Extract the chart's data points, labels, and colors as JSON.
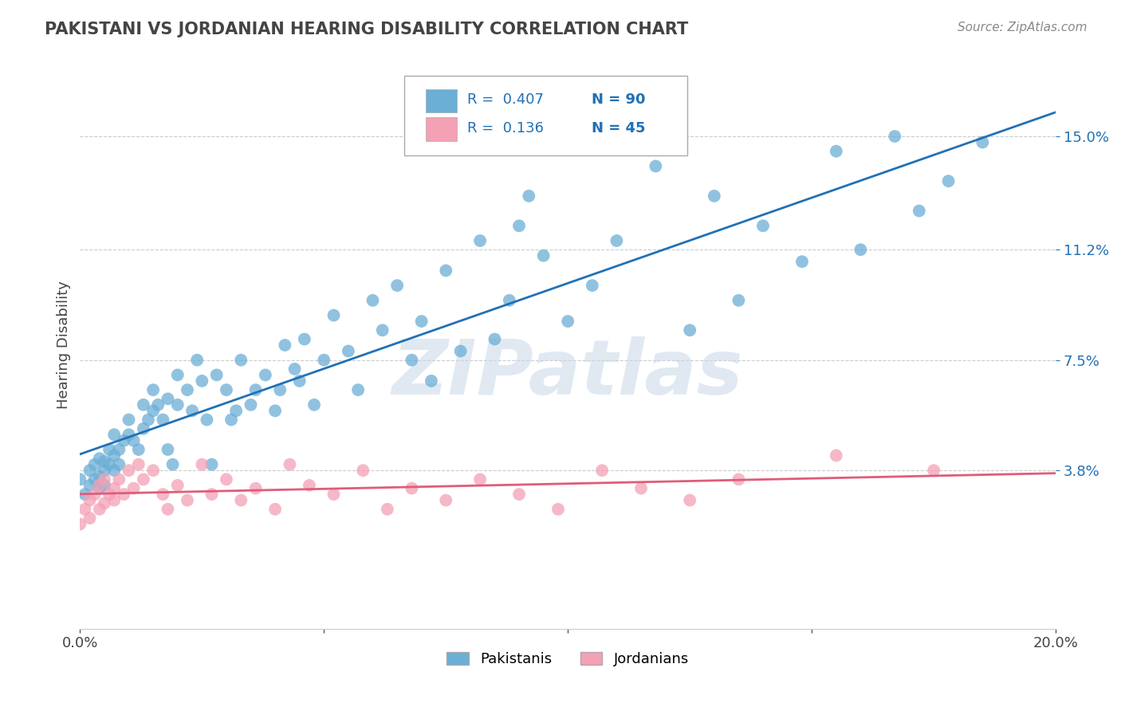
{
  "title": "PAKISTANI VS JORDANIAN HEARING DISABILITY CORRELATION CHART",
  "source": "Source: ZipAtlas.com",
  "ylabel": "Hearing Disability",
  "ytick_labels": [
    "15.0%",
    "11.2%",
    "7.5%",
    "3.8%"
  ],
  "ytick_values": [
    0.15,
    0.112,
    0.075,
    0.038
  ],
  "xlim": [
    0.0,
    0.2
  ],
  "ylim": [
    -0.015,
    0.175
  ],
  "legend_r1": "R =  0.407",
  "legend_n1": "N = 90",
  "legend_r2": "R =  0.136",
  "legend_n2": "N = 45",
  "blue_color": "#6baed6",
  "pink_color": "#f4a0b5",
  "line_blue": "#2171b5",
  "line_pink": "#e05c7a",
  "pakistani_x": [
    0.0,
    0.001,
    0.002,
    0.002,
    0.003,
    0.003,
    0.004,
    0.004,
    0.004,
    0.005,
    0.005,
    0.005,
    0.006,
    0.006,
    0.007,
    0.007,
    0.007,
    0.008,
    0.008,
    0.009,
    0.01,
    0.01,
    0.011,
    0.012,
    0.013,
    0.013,
    0.014,
    0.015,
    0.015,
    0.016,
    0.017,
    0.018,
    0.018,
    0.019,
    0.02,
    0.02,
    0.022,
    0.023,
    0.024,
    0.025,
    0.026,
    0.027,
    0.028,
    0.03,
    0.031,
    0.032,
    0.033,
    0.035,
    0.036,
    0.038,
    0.04,
    0.041,
    0.042,
    0.044,
    0.045,
    0.046,
    0.048,
    0.05,
    0.052,
    0.055,
    0.057,
    0.06,
    0.062,
    0.065,
    0.068,
    0.07,
    0.072,
    0.075,
    0.078,
    0.082,
    0.085,
    0.088,
    0.09,
    0.092,
    0.095,
    0.1,
    0.105,
    0.11,
    0.118,
    0.125,
    0.13,
    0.135,
    0.14,
    0.148,
    0.155,
    0.16,
    0.167,
    0.172,
    0.178,
    0.185
  ],
  "pakistani_y": [
    0.035,
    0.03,
    0.033,
    0.038,
    0.035,
    0.04,
    0.032,
    0.036,
    0.042,
    0.038,
    0.041,
    0.033,
    0.04,
    0.045,
    0.038,
    0.043,
    0.05,
    0.04,
    0.045,
    0.048,
    0.05,
    0.055,
    0.048,
    0.045,
    0.06,
    0.052,
    0.055,
    0.058,
    0.065,
    0.06,
    0.055,
    0.062,
    0.045,
    0.04,
    0.06,
    0.07,
    0.065,
    0.058,
    0.075,
    0.068,
    0.055,
    0.04,
    0.07,
    0.065,
    0.055,
    0.058,
    0.075,
    0.06,
    0.065,
    0.07,
    0.058,
    0.065,
    0.08,
    0.072,
    0.068,
    0.082,
    0.06,
    0.075,
    0.09,
    0.078,
    0.065,
    0.095,
    0.085,
    0.1,
    0.075,
    0.088,
    0.068,
    0.105,
    0.078,
    0.115,
    0.082,
    0.095,
    0.12,
    0.13,
    0.11,
    0.088,
    0.1,
    0.115,
    0.14,
    0.085,
    0.13,
    0.095,
    0.12,
    0.108,
    0.145,
    0.112,
    0.15,
    0.125,
    0.135,
    0.148
  ],
  "jordanian_x": [
    0.0,
    0.001,
    0.002,
    0.002,
    0.003,
    0.004,
    0.004,
    0.005,
    0.005,
    0.006,
    0.007,
    0.007,
    0.008,
    0.009,
    0.01,
    0.011,
    0.012,
    0.013,
    0.015,
    0.017,
    0.018,
    0.02,
    0.022,
    0.025,
    0.027,
    0.03,
    0.033,
    0.036,
    0.04,
    0.043,
    0.047,
    0.052,
    0.058,
    0.063,
    0.068,
    0.075,
    0.082,
    0.09,
    0.098,
    0.107,
    0.115,
    0.125,
    0.135,
    0.155,
    0.175
  ],
  "jordanian_y": [
    0.02,
    0.025,
    0.028,
    0.022,
    0.03,
    0.025,
    0.033,
    0.027,
    0.035,
    0.03,
    0.028,
    0.032,
    0.035,
    0.03,
    0.038,
    0.032,
    0.04,
    0.035,
    0.038,
    0.03,
    0.025,
    0.033,
    0.028,
    0.04,
    0.03,
    0.035,
    0.028,
    0.032,
    0.025,
    0.04,
    0.033,
    0.03,
    0.038,
    0.025,
    0.032,
    0.028,
    0.035,
    0.03,
    0.025,
    0.038,
    0.032,
    0.028,
    0.035,
    0.043,
    0.038
  ],
  "watermark": "ZIPatlas",
  "background_color": "#ffffff"
}
